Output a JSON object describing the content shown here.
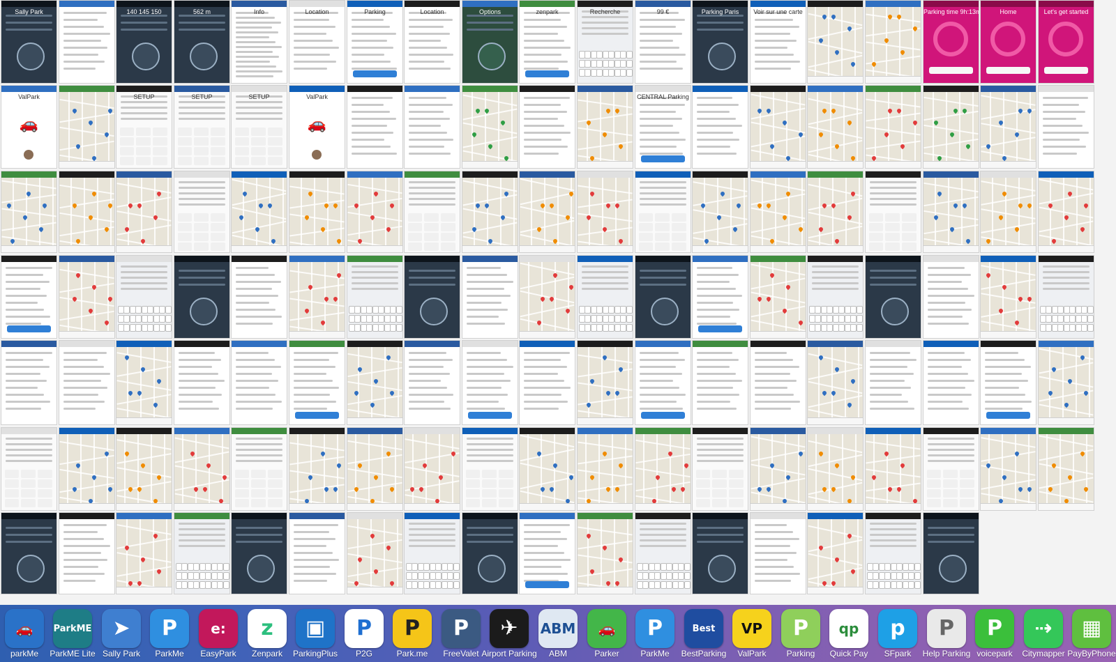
{
  "mosaic": {
    "screens": [
      {
        "name": "save-spot-dialog",
        "style": "dark",
        "text": "Sally Park"
      },
      {
        "name": "web-parking-page",
        "style": "list",
        "text": ""
      },
      {
        "name": "parking-meter-gauge",
        "style": "dark",
        "text": "140 145 150"
      },
      {
        "name": "distance-display",
        "style": "dark",
        "text": "562 m"
      },
      {
        "name": "info-text",
        "style": "doc",
        "text": "Info"
      },
      {
        "name": "location-dialog",
        "style": "list",
        "text": "Location"
      },
      {
        "name": "parking-picker",
        "style": "list",
        "text": "Parking"
      },
      {
        "name": "location-menu",
        "style": "list",
        "text": "Location"
      },
      {
        "name": "options-menu",
        "style": "greenmenu",
        "text": "Options"
      },
      {
        "name": "zenpark-list",
        "style": "list",
        "text": "zenpark"
      },
      {
        "name": "search-keyboard",
        "style": "keyboard",
        "text": "Recherche"
      },
      {
        "name": "tarif-page",
        "style": "list",
        "text": "99 €"
      },
      {
        "name": "parking-grid",
        "style": "dark",
        "text": "Parking Paris"
      },
      {
        "name": "city-list",
        "style": "list",
        "text": "Voir sur une carte"
      },
      {
        "name": "zenpark-map",
        "style": "map",
        "text": ""
      },
      {
        "name": "zenpark-map-2",
        "style": "map",
        "text": ""
      },
      {
        "name": "parking-timer",
        "style": "magenta",
        "text": "Parking time 9h:13m"
      },
      {
        "name": "side-menu",
        "style": "magenta",
        "text": "Home"
      },
      {
        "name": "lets-get-started",
        "style": "magenta",
        "text": "Let's get started"
      },
      {
        "name": "valpark-splash",
        "style": "splash",
        "text": "ValPark"
      },
      {
        "name": "find-garages-map",
        "style": "map",
        "text": ""
      },
      {
        "name": "setup-keypad",
        "style": "keypad",
        "text": "SETUP"
      },
      {
        "name": "setup-keypad-2",
        "style": "keypad",
        "text": "SETUP"
      },
      {
        "name": "setup-keypad-3",
        "style": "keypad",
        "text": "SETUP"
      },
      {
        "name": "valpark-splash-2",
        "style": "splash",
        "text": "ValPark"
      },
      {
        "name": "reservation-dialog",
        "style": "list",
        "text": ""
      },
      {
        "name": "garage-list",
        "style": "list",
        "text": ""
      },
      {
        "name": "map-pins",
        "style": "map",
        "text": ""
      },
      {
        "name": "search-results",
        "style": "list",
        "text": ""
      },
      {
        "name": "share-sheet",
        "style": "map",
        "text": ""
      },
      {
        "name": "central-parking-popup",
        "style": "list",
        "text": "CENTRAL Parking"
      },
      {
        "name": "central-parking-list",
        "style": "list",
        "text": ""
      },
      {
        "name": "map-green-pins",
        "style": "map",
        "text": ""
      },
      {
        "name": "map-green-pins-2",
        "style": "map",
        "text": ""
      },
      {
        "name": "map-red-streets",
        "style": "map",
        "text": ""
      },
      {
        "name": "map-green-pins-3",
        "style": "map",
        "text": ""
      }
    ],
    "rows": 7,
    "cols": 19
  },
  "dock": {
    "apps": [
      {
        "label": "parkMe",
        "color": "#2a72c8",
        "glyph": "🚗",
        "fg": "#ffffff"
      },
      {
        "label": "ParkME Lite",
        "color": "#1e7d86",
        "glyph": "ParkME",
        "fg": "#ffffff"
      },
      {
        "label": "Sally Park",
        "color": "#3f7fd0",
        "glyph": "➤",
        "fg": "#ffffff"
      },
      {
        "label": "ParkMe",
        "color": "#2f8fe0",
        "glyph": "P",
        "fg": "#ffffff"
      },
      {
        "label": "EasyPark",
        "color": "#c2185b",
        "glyph": "e:",
        "fg": "#ffffff"
      },
      {
        "label": "Zenpark",
        "color": "#ffffff",
        "glyph": "z",
        "fg": "#2dbf7e"
      },
      {
        "label": "ParkingPlus",
        "color": "#1f73c8",
        "glyph": "▣",
        "fg": "#ffffff"
      },
      {
        "label": "P2G",
        "color": "#ffffff",
        "glyph": "P",
        "fg": "#1f6fd1"
      },
      {
        "label": "Park.me",
        "color": "#f5c518",
        "glyph": "P",
        "fg": "#222222"
      },
      {
        "label": "FreeValet",
        "color": "#3b5a82",
        "glyph": "P",
        "fg": "#ffffff"
      },
      {
        "label": "Airport Parking",
        "color": "#1b1b1b",
        "glyph": "✈",
        "fg": "#ffffff"
      },
      {
        "label": "ABM",
        "color": "#dfe8f2",
        "glyph": "ABM",
        "fg": "#1d4f93"
      },
      {
        "label": "Parker",
        "color": "#43b649",
        "glyph": "🚗",
        "fg": "#ffffff"
      },
      {
        "label": "ParkMe",
        "color": "#2f8fe0",
        "glyph": "P",
        "fg": "#ffffff"
      },
      {
        "label": "BestParking",
        "color": "#1f4da0",
        "glyph": "Best",
        "fg": "#ffffff"
      },
      {
        "label": "ValPark",
        "color": "#f6d21c",
        "glyph": "VP",
        "fg": "#111111"
      },
      {
        "label": "Parking",
        "color": "#8fcf5b",
        "glyph": "P",
        "fg": "#ffffff"
      },
      {
        "label": "Quick Pay",
        "color": "#ffffff",
        "glyph": "qp",
        "fg": "#2c8d3c"
      },
      {
        "label": "SFpark",
        "color": "#1ea0e6",
        "glyph": "p",
        "fg": "#ffffff"
      },
      {
        "label": "Help Parking",
        "color": "#e9e9e9",
        "glyph": "P",
        "fg": "#666666"
      },
      {
        "label": "voicepark",
        "color": "#3bbf3b",
        "glyph": "P",
        "fg": "#ffffff"
      },
      {
        "label": "Citymapper",
        "color": "#34c759",
        "glyph": "⇢",
        "fg": "#ffffff"
      },
      {
        "label": "PayByPhone",
        "color": "#5fbf3f",
        "glyph": "▦",
        "fg": "#ffffff"
      }
    ]
  }
}
